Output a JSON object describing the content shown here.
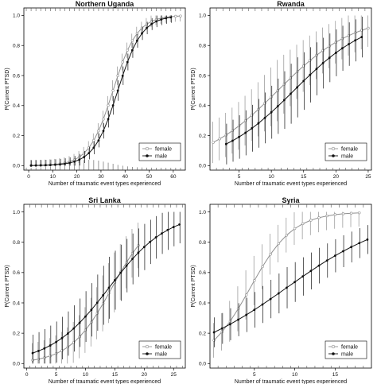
{
  "chart_data": [
    {
      "type": "line",
      "title": "Northern Uganda",
      "xlabel": "Number of traumatic event types experienced",
      "ylabel": "P(Current PTSD)",
      "xlim": [
        -2,
        65
      ],
      "ylim": [
        -0.03,
        1.05
      ],
      "xticks": [
        "0",
        "10",
        "20",
        "30",
        "40",
        "50",
        "60"
      ],
      "xtick_values": [
        0,
        10,
        20,
        30,
        40,
        50,
        60
      ],
      "yticks": [
        "0.0",
        "0.2",
        "0.4",
        "0.6",
        "0.8",
        "1.0"
      ],
      "ytick_values": [
        0,
        0.2,
        0.4,
        0.6,
        0.8,
        1.0
      ],
      "legend": "bottom-right",
      "series": [
        {
          "name": "female",
          "color": "#909090",
          "marker": "open-circle",
          "logistic": {
            "mid": 35,
            "slope": 0.2,
            "x_start": 1,
            "x_end": 63,
            "ci": 0.04
          }
        },
        {
          "name": "male",
          "color": "#111111",
          "marker": "filled-circle",
          "logistic": {
            "mid": 37,
            "slope": 0.2,
            "x_start": 1,
            "x_end": 60,
            "ci": 0.04
          }
        }
      ]
    },
    {
      "type": "line",
      "title": "Rwanda",
      "xlabel": "Number of traumatic event types experienced",
      "ylabel": "P(Current PTSD)",
      "xlim": [
        0.5,
        25.5
      ],
      "ylim": [
        -0.03,
        1.05
      ],
      "xticks": [
        "5",
        "10",
        "15",
        "20",
        "25"
      ],
      "xtick_values": [
        5,
        10,
        15,
        20,
        25
      ],
      "yticks": [
        "0.0",
        "0.2",
        "0.4",
        "0.6",
        "0.8",
        "1.0"
      ],
      "ytick_values": [
        0,
        0.2,
        0.4,
        0.6,
        0.8,
        1.0
      ],
      "legend": "bottom-right",
      "series": [
        {
          "name": "female",
          "color": "#909090",
          "marker": "open-circle",
          "logistic": {
            "mid": 11,
            "slope": 0.17,
            "x_start": 1,
            "x_end": 25,
            "ci": 0.12
          }
        },
        {
          "name": "male",
          "color": "#111111",
          "marker": "filled-circle",
          "logistic": {
            "mid": 13.5,
            "slope": 0.17,
            "x_start": 3,
            "x_end": 24,
            "ci": 0.12
          }
        }
      ]
    },
    {
      "type": "line",
      "title": "Sri Lanka",
      "xlabel": "Number of traumatic event types experienced",
      "ylabel": "P(Current PTSD)",
      "xlim": [
        -0.5,
        27
      ],
      "ylim": [
        -0.03,
        1.05
      ],
      "xticks": [
        "0",
        "5",
        "10",
        "15",
        "20",
        "25"
      ],
      "xtick_values": [
        0,
        5,
        10,
        15,
        20,
        25
      ],
      "yticks": [
        "0.0",
        "0.2",
        "0.4",
        "0.6",
        "0.8",
        "1.0"
      ],
      "ytick_values": [
        0,
        0.2,
        0.4,
        0.6,
        0.8,
        1.0
      ],
      "legend": "bottom-right",
      "series": [
        {
          "name": "female",
          "color": "#909090",
          "marker": "open-circle",
          "logistic": {
            "mid": 14.5,
            "slope": 0.28,
            "x_start": 1,
            "x_end": 19,
            "ci": 0.12
          }
        },
        {
          "name": "male",
          "color": "#111111",
          "marker": "filled-circle",
          "logistic": {
            "mid": 14,
            "slope": 0.2,
            "x_start": 1,
            "x_end": 26,
            "ci": 0.12
          }
        }
      ]
    },
    {
      "type": "line",
      "title": "Syria",
      "xlabel": "Number of traumatic event types experienced",
      "ylabel": "P(Current PTSD)",
      "xlim": [
        -0.5,
        19.5
      ],
      "ylim": [
        -0.03,
        1.05
      ],
      "xticks": [
        "5",
        "10",
        "15"
      ],
      "xtick_values": [
        5,
        10,
        15
      ],
      "yticks": [
        "0.0",
        "0.2",
        "0.4",
        "0.6",
        "0.8",
        "1.0"
      ],
      "ytick_values": [
        0,
        0.2,
        0.4,
        0.6,
        0.8,
        1.0
      ],
      "legend": "bottom-right",
      "series": [
        {
          "name": "female",
          "color": "#909090",
          "marker": "open-circle",
          "logistic": {
            "mid": 4.5,
            "slope": 0.38,
            "x_start": 0,
            "x_end": 18,
            "ci": 0.1
          }
        },
        {
          "name": "male",
          "color": "#111111",
          "marker": "filled-circle",
          "logistic": {
            "mid": 9,
            "slope": 0.15,
            "x_start": 0,
            "x_end": 19,
            "ci": 0.08
          }
        }
      ]
    }
  ]
}
